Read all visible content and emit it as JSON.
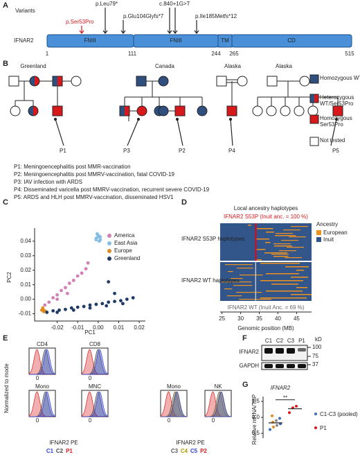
{
  "panel_a": {
    "label": "A",
    "variants_label": "Variants",
    "gene": "IFNAR2",
    "variants": [
      "p.Ser53Pro",
      "p.Leu79*",
      "p.Glu104Glyfs*7",
      "c.840+1G>T",
      "p.Ile185Metfs*12"
    ],
    "domains": [
      "FNIII",
      "FNIII",
      "TM",
      "CD"
    ],
    "positions": [
      1,
      111,
      244,
      265,
      515
    ]
  },
  "panel_b": {
    "label": "B",
    "populations": [
      "Greenland",
      "Canada",
      "Alaska",
      "Alaska"
    ],
    "patients": [
      "P1",
      "P3",
      "P2",
      "P4",
      "P5"
    ],
    "legend": [
      {
        "name": "Homozygous WT",
        "color": "#2f4f7f"
      },
      {
        "name": "Heterozygous WT/Ser53Pro",
        "color": "split"
      },
      {
        "name": "Homozygous Ser53Pro",
        "color": "#d7191c"
      },
      {
        "name": "Not tested",
        "color": "#ffffff"
      }
    ],
    "notes": [
      "P1: Meningoencephalitis post MMR-vaccination",
      "P2: Meningoencephalitis post MMRV-vaccination, fatal COVID-19",
      "P3: IAV infection with ARDS",
      "P4: Disseminated varicella post MMRV-vaccination, recurrent severe COVID-19",
      "P5: ARDS and HLH post MMRV-vaccination, disseminated HSV1"
    ]
  },
  "panel_c": {
    "label": "C",
    "type": "scatter",
    "xlabel": "PC1",
    "ylabel": "PC2",
    "xlim": [
      -0.031,
      0.023
    ],
    "ylim": [
      -0.015,
      0.049
    ],
    "xticks": [
      -0.02,
      -0.01,
      {
        "value": 0,
        "label": "0.00"
      },
      0.01,
      0.02
    ],
    "yticks": [
      -0.01,
      {
        "value": 0,
        "label": "0.00"
      },
      0.01,
      0.02,
      0.03,
      0.04
    ],
    "series": [
      {
        "name": "America",
        "color": "#d17fb5",
        "x": [
          -0.026,
          -0.024,
          -0.022,
          -0.02,
          -0.018,
          -0.016,
          -0.014,
          -0.012,
          -0.01,
          -0.008,
          -0.006,
          -0.005,
          -0.02,
          -0.015
        ],
        "y": [
          -0.004,
          -0.002,
          0.001,
          0.003,
          0.006,
          0.008,
          0.011,
          0.013,
          0.016,
          0.018,
          0.021,
          0.025,
          0,
          0.004
        ]
      },
      {
        "name": "East Asia",
        "color": "#86bde3",
        "x": [
          -0.001,
          0,
          0.001,
          0,
          -0.0005,
          0.0005,
          0.001,
          -0.001
        ],
        "y": [
          0.042,
          0.043,
          0.041,
          0.044,
          0.045,
          0.04,
          0.043,
          0.041
        ]
      },
      {
        "name": "Europe",
        "color": "#e08a1e",
        "x": [
          -0.027,
          -0.026,
          -0.027,
          -0.0265,
          -0.0275
        ],
        "y": [
          -0.007,
          -0.008,
          -0.006,
          -0.0085,
          -0.0075
        ]
      },
      {
        "name": "Greenland",
        "color": "#1f3a64",
        "x": [
          -0.025,
          -0.022,
          -0.019,
          -0.016,
          -0.013,
          -0.01,
          -0.007,
          -0.004,
          -0.001,
          0.002,
          0.005,
          0.008,
          0.011,
          0.014,
          0.017,
          -0.02,
          -0.012,
          -0.004,
          0.004,
          0.012,
          0.005,
          0.008
        ],
        "y": [
          -0.009,
          -0.008,
          -0.0075,
          -0.007,
          -0.006,
          -0.0055,
          -0.005,
          -0.004,
          -0.0035,
          -0.003,
          -0.002,
          -0.0015,
          -0.001,
          0,
          0.001,
          -0.009,
          -0.0075,
          -0.006,
          -0.0045,
          -0.003,
          0.012,
          0.004
        ]
      }
    ]
  },
  "panel_d": {
    "label": "D",
    "title": "Local ancestry haplotypes",
    "top_note": "IFNAR2 S53P (Inuit anc. = 100 %)",
    "row_labels": [
      "IFNAR2 S53P haplotypes",
      "IFNAR2 WT haplotypes"
    ],
    "bottom_note": "IFNAR2 WT (Inuit Anc. = 69 %)",
    "legend_title": "Ancestry",
    "legend": [
      {
        "name": "European",
        "color": "#f0921e"
      },
      {
        "name": "Inuit",
        "color": "#33568a"
      }
    ],
    "xlabel": "Genomic position (MB)",
    "xlim": [
      24.5,
      49
    ],
    "xticks": [
      25,
      30,
      35,
      40,
      45
    ]
  },
  "panel_e": {
    "label": "E",
    "ylabel": "Normalized to mode",
    "xlabel": "IFNAR2 PE",
    "zero": "0",
    "left_plots": [
      "CD4",
      "CD8",
      "Mono",
      "MNC"
    ],
    "right_plots": [
      "Mono",
      "NK"
    ],
    "left_samples": [
      {
        "name": "C1",
        "color": "#2b3fd6"
      },
      {
        "name": "C2",
        "color": "#444444"
      },
      {
        "name": "P1",
        "color": "#d7191c"
      }
    ],
    "right_samples": [
      {
        "name": "C3",
        "color": "#555555"
      },
      {
        "name": "C4",
        "color": "#b59a00"
      },
      {
        "name": "C5",
        "color": "#2b3fd6"
      },
      {
        "name": "P2",
        "color": "#d7191c"
      }
    ]
  },
  "panel_f": {
    "label": "F",
    "lanes": [
      "C1",
      "C2",
      "C3",
      "P1"
    ],
    "unit": "kD",
    "markers": [
      100,
      75,
      37
    ],
    "rows": [
      "IFNAR2",
      "GAPDH"
    ]
  },
  "panel_g": {
    "label": "G",
    "title": "IFNAR2",
    "ylabel": "Relative mRNA/TBP",
    "significance": "**",
    "ylim": [
      0.35,
      1.65
    ],
    "yticks": [
      0.5,
      {
        "value": 1,
        "label": "1.0"
      },
      1.5
    ],
    "groups": [
      {
        "name": "C1-C3 (pooled)",
        "colors": [
          "#3b6fb6",
          "#e08a1e",
          "#888888",
          "#3b6fb6",
          "#e08a1e",
          "#888888",
          "#3b6fb6",
          "#e08a1e"
        ],
        "values": [
          0.62,
          0.7,
          0.75,
          0.8,
          0.85,
          0.9,
          0.97,
          1.05
        ],
        "mean": 0.83
      },
      {
        "name": "P1",
        "colors": [
          "#d7191c",
          "#d7191c",
          "#d7191c"
        ],
        "values": [
          1.15,
          1.3,
          1.35
        ],
        "mean": 1.27
      }
    ]
  }
}
